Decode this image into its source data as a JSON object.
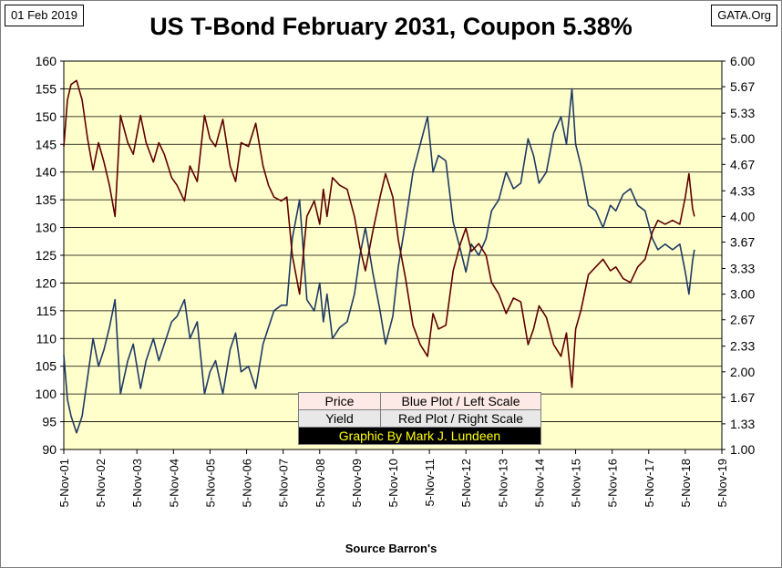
{
  "header": {
    "date_tag": "01 Feb 2019",
    "source_tag": "GATA.Org",
    "title": "US T-Bond February 2031, Coupon 5.38%"
  },
  "legend": {
    "row1_label": "Price",
    "row1_desc": "Blue Plot / Left Scale",
    "row2_label": "Yield",
    "row2_desc": "Red Plot / Right Scale",
    "credit": "Graphic By Mark J. Lundeen"
  },
  "footer": {
    "source": "Source Barron's"
  },
  "colors": {
    "plot_bg": "#ffffcc",
    "price_line": "#1f3a64",
    "yield_line": "#600000",
    "grid": "#000000"
  },
  "chart_data": {
    "type": "line",
    "title": "US T-Bond February 2031, Coupon 5.38%",
    "xlabel": "",
    "ylabel": "",
    "categories": [
      "5-Nov-01",
      "5-Nov-02",
      "5-Nov-03",
      "5-Nov-04",
      "5-Nov-05",
      "5-Nov-06",
      "5-Nov-07",
      "5-Nov-08",
      "5-Nov-09",
      "5-Nov-10",
      "5-Nov-11",
      "5-Nov-12",
      "5-Nov-13",
      "5-Nov-14",
      "5-Nov-15",
      "5-Nov-16",
      "5-Nov-17",
      "5-Nov-18",
      "5-Nov-19"
    ],
    "xlim": [
      2001.85,
      2019.85
    ],
    "ylim_left": [
      90,
      160
    ],
    "yticks_left": [
      "90",
      "95",
      "100",
      "105",
      "110",
      "115",
      "120",
      "125",
      "130",
      "135",
      "140",
      "145",
      "150",
      "155",
      "160"
    ],
    "ylim_right": [
      1.0,
      6.0
    ],
    "yticks_right": [
      "1.00",
      "1.33",
      "1.67",
      "2.00",
      "2.33",
      "2.67",
      "3.00",
      "3.33",
      "3.67",
      "4.00",
      "4.33",
      "4.67",
      "5.00",
      "5.33",
      "5.67",
      "6.00"
    ],
    "grid": "horizontal",
    "series": [
      {
        "name": "Price",
        "axis": "left",
        "x": [
          2001.85,
          2001.95,
          2002.05,
          2002.2,
          2002.35,
          2002.5,
          2002.65,
          2002.8,
          2002.95,
          2003.1,
          2003.25,
          2003.4,
          2003.6,
          2003.75,
          2003.95,
          2004.1,
          2004.3,
          2004.45,
          2004.6,
          2004.8,
          2004.95,
          2005.15,
          2005.3,
          2005.5,
          2005.7,
          2005.85,
          2006.0,
          2006.2,
          2006.4,
          2006.55,
          2006.7,
          2006.9,
          2007.1,
          2007.3,
          2007.45,
          2007.6,
          2007.8,
          2007.95,
          2008.1,
          2008.3,
          2008.5,
          2008.7,
          2008.85,
          2008.95,
          2009.05,
          2009.2,
          2009.4,
          2009.6,
          2009.8,
          2009.95,
          2010.1,
          2010.3,
          2010.5,
          2010.65,
          2010.85,
          2011.0,
          2011.2,
          2011.4,
          2011.6,
          2011.8,
          2011.95,
          2012.1,
          2012.3,
          2012.5,
          2012.7,
          2012.85,
          2013.0,
          2013.2,
          2013.4,
          2013.55,
          2013.75,
          2013.95,
          2014.15,
          2014.35,
          2014.55,
          2014.7,
          2014.85,
          2015.05,
          2015.25,
          2015.45,
          2015.6,
          2015.75,
          2015.85,
          2016.0,
          2016.2,
          2016.4,
          2016.6,
          2016.8,
          2016.95,
          2017.15,
          2017.35,
          2017.55,
          2017.75,
          2017.95,
          2018.1,
          2018.3,
          2018.5,
          2018.7,
          2018.85,
          2018.95,
          2019.05,
          2019.1
        ],
        "y": [
          107,
          99,
          96,
          93,
          96,
          103,
          110,
          105,
          108,
          112,
          117,
          100,
          106,
          109,
          101,
          106,
          110,
          106,
          109,
          113,
          114,
          117,
          110,
          113,
          100,
          104,
          106,
          100,
          108,
          111,
          104,
          105,
          101,
          109,
          112,
          115,
          116,
          116,
          128,
          135,
          117,
          115,
          120,
          113,
          118,
          110,
          112,
          113,
          118,
          125,
          130,
          122,
          115,
          109,
          114,
          123,
          131,
          140,
          145,
          150,
          140,
          143,
          142,
          131,
          126,
          122,
          127,
          125,
          128,
          133,
          135,
          140,
          137,
          138,
          146,
          143,
          138,
          140,
          147,
          150,
          145,
          155,
          145,
          141,
          134,
          133,
          130,
          134,
          133,
          136,
          137,
          134,
          133,
          128,
          126,
          127,
          126,
          127,
          122,
          118,
          124,
          126
        ]
      },
      {
        "name": "Yield",
        "axis": "right",
        "x": [
          2001.85,
          2001.95,
          2002.05,
          2002.2,
          2002.35,
          2002.5,
          2002.65,
          2002.8,
          2002.95,
          2003.1,
          2003.25,
          2003.4,
          2003.6,
          2003.75,
          2003.95,
          2004.1,
          2004.3,
          2004.45,
          2004.6,
          2004.8,
          2004.95,
          2005.15,
          2005.3,
          2005.5,
          2005.7,
          2005.85,
          2006.0,
          2006.2,
          2006.4,
          2006.55,
          2006.7,
          2006.9,
          2007.1,
          2007.3,
          2007.45,
          2007.6,
          2007.8,
          2007.95,
          2008.1,
          2008.3,
          2008.5,
          2008.7,
          2008.85,
          2008.95,
          2009.05,
          2009.2,
          2009.4,
          2009.6,
          2009.8,
          2009.95,
          2010.1,
          2010.3,
          2010.5,
          2010.65,
          2010.85,
          2011.0,
          2011.2,
          2011.4,
          2011.6,
          2011.8,
          2011.95,
          2012.1,
          2012.3,
          2012.5,
          2012.7,
          2012.85,
          2013.0,
          2013.2,
          2013.4,
          2013.55,
          2013.75,
          2013.95,
          2014.15,
          2014.35,
          2014.55,
          2014.7,
          2014.85,
          2015.05,
          2015.25,
          2015.45,
          2015.6,
          2015.75,
          2015.85,
          2016.0,
          2016.2,
          2016.4,
          2016.6,
          2016.8,
          2016.95,
          2017.15,
          2017.35,
          2017.55,
          2017.75,
          2017.95,
          2018.1,
          2018.3,
          2018.5,
          2018.7,
          2018.85,
          2018.95,
          2019.05,
          2019.1
        ],
        "y": [
          4.9,
          5.5,
          5.7,
          5.75,
          5.5,
          5.0,
          4.6,
          4.95,
          4.7,
          4.4,
          4.0,
          5.3,
          4.95,
          4.8,
          5.3,
          4.95,
          4.7,
          4.95,
          4.8,
          4.5,
          4.4,
          4.2,
          4.65,
          4.45,
          5.3,
          5.0,
          4.9,
          5.25,
          4.65,
          4.45,
          4.95,
          4.9,
          5.2,
          4.65,
          4.4,
          4.25,
          4.2,
          4.25,
          3.5,
          3.0,
          4.0,
          4.2,
          3.9,
          4.35,
          4.0,
          4.5,
          4.4,
          4.35,
          4.0,
          3.6,
          3.3,
          3.8,
          4.25,
          4.55,
          4.25,
          3.7,
          3.2,
          2.6,
          2.35,
          2.2,
          2.75,
          2.55,
          2.6,
          3.3,
          3.65,
          3.85,
          3.55,
          3.65,
          3.5,
          3.15,
          3.0,
          2.75,
          2.95,
          2.9,
          2.35,
          2.55,
          2.85,
          2.7,
          2.35,
          2.2,
          2.5,
          1.8,
          2.55,
          2.8,
          3.25,
          3.35,
          3.45,
          3.3,
          3.35,
          3.2,
          3.15,
          3.35,
          3.45,
          3.8,
          3.95,
          3.9,
          3.95,
          3.9,
          4.25,
          4.55,
          4.1,
          4.0
        ]
      }
    ]
  }
}
